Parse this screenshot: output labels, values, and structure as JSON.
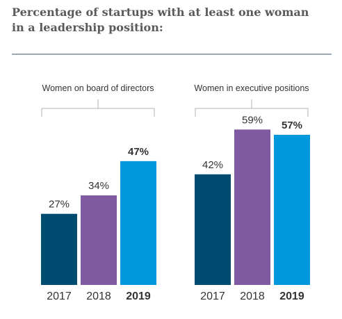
{
  "title_lines": [
    "Percentage of startups with at least one woman",
    "in a leadership position:"
  ],
  "chart_data": [
    {
      "type": "bar",
      "title": "Women on board of directors",
      "categories": [
        "2017",
        "2018",
        "2019"
      ],
      "values": [
        27,
        34,
        47
      ],
      "value_labels": [
        "27%",
        "34%",
        "47%"
      ],
      "highlight_index": 2,
      "unit": "%",
      "ylim": [
        0,
        62
      ],
      "grid": false,
      "colors": [
        "#004c70",
        "#7f5aa0",
        "#0098dc"
      ]
    },
    {
      "type": "bar",
      "title": "Women in executive positions",
      "categories": [
        "2017",
        "2018",
        "2019"
      ],
      "values": [
        42,
        59,
        57
      ],
      "value_labels": [
        "42%",
        "59%",
        "57%"
      ],
      "highlight_index": 2,
      "unit": "%",
      "ylim": [
        0,
        62
      ],
      "grid": false,
      "colors": [
        "#004c70",
        "#7f5aa0",
        "#0098dc"
      ]
    }
  ]
}
